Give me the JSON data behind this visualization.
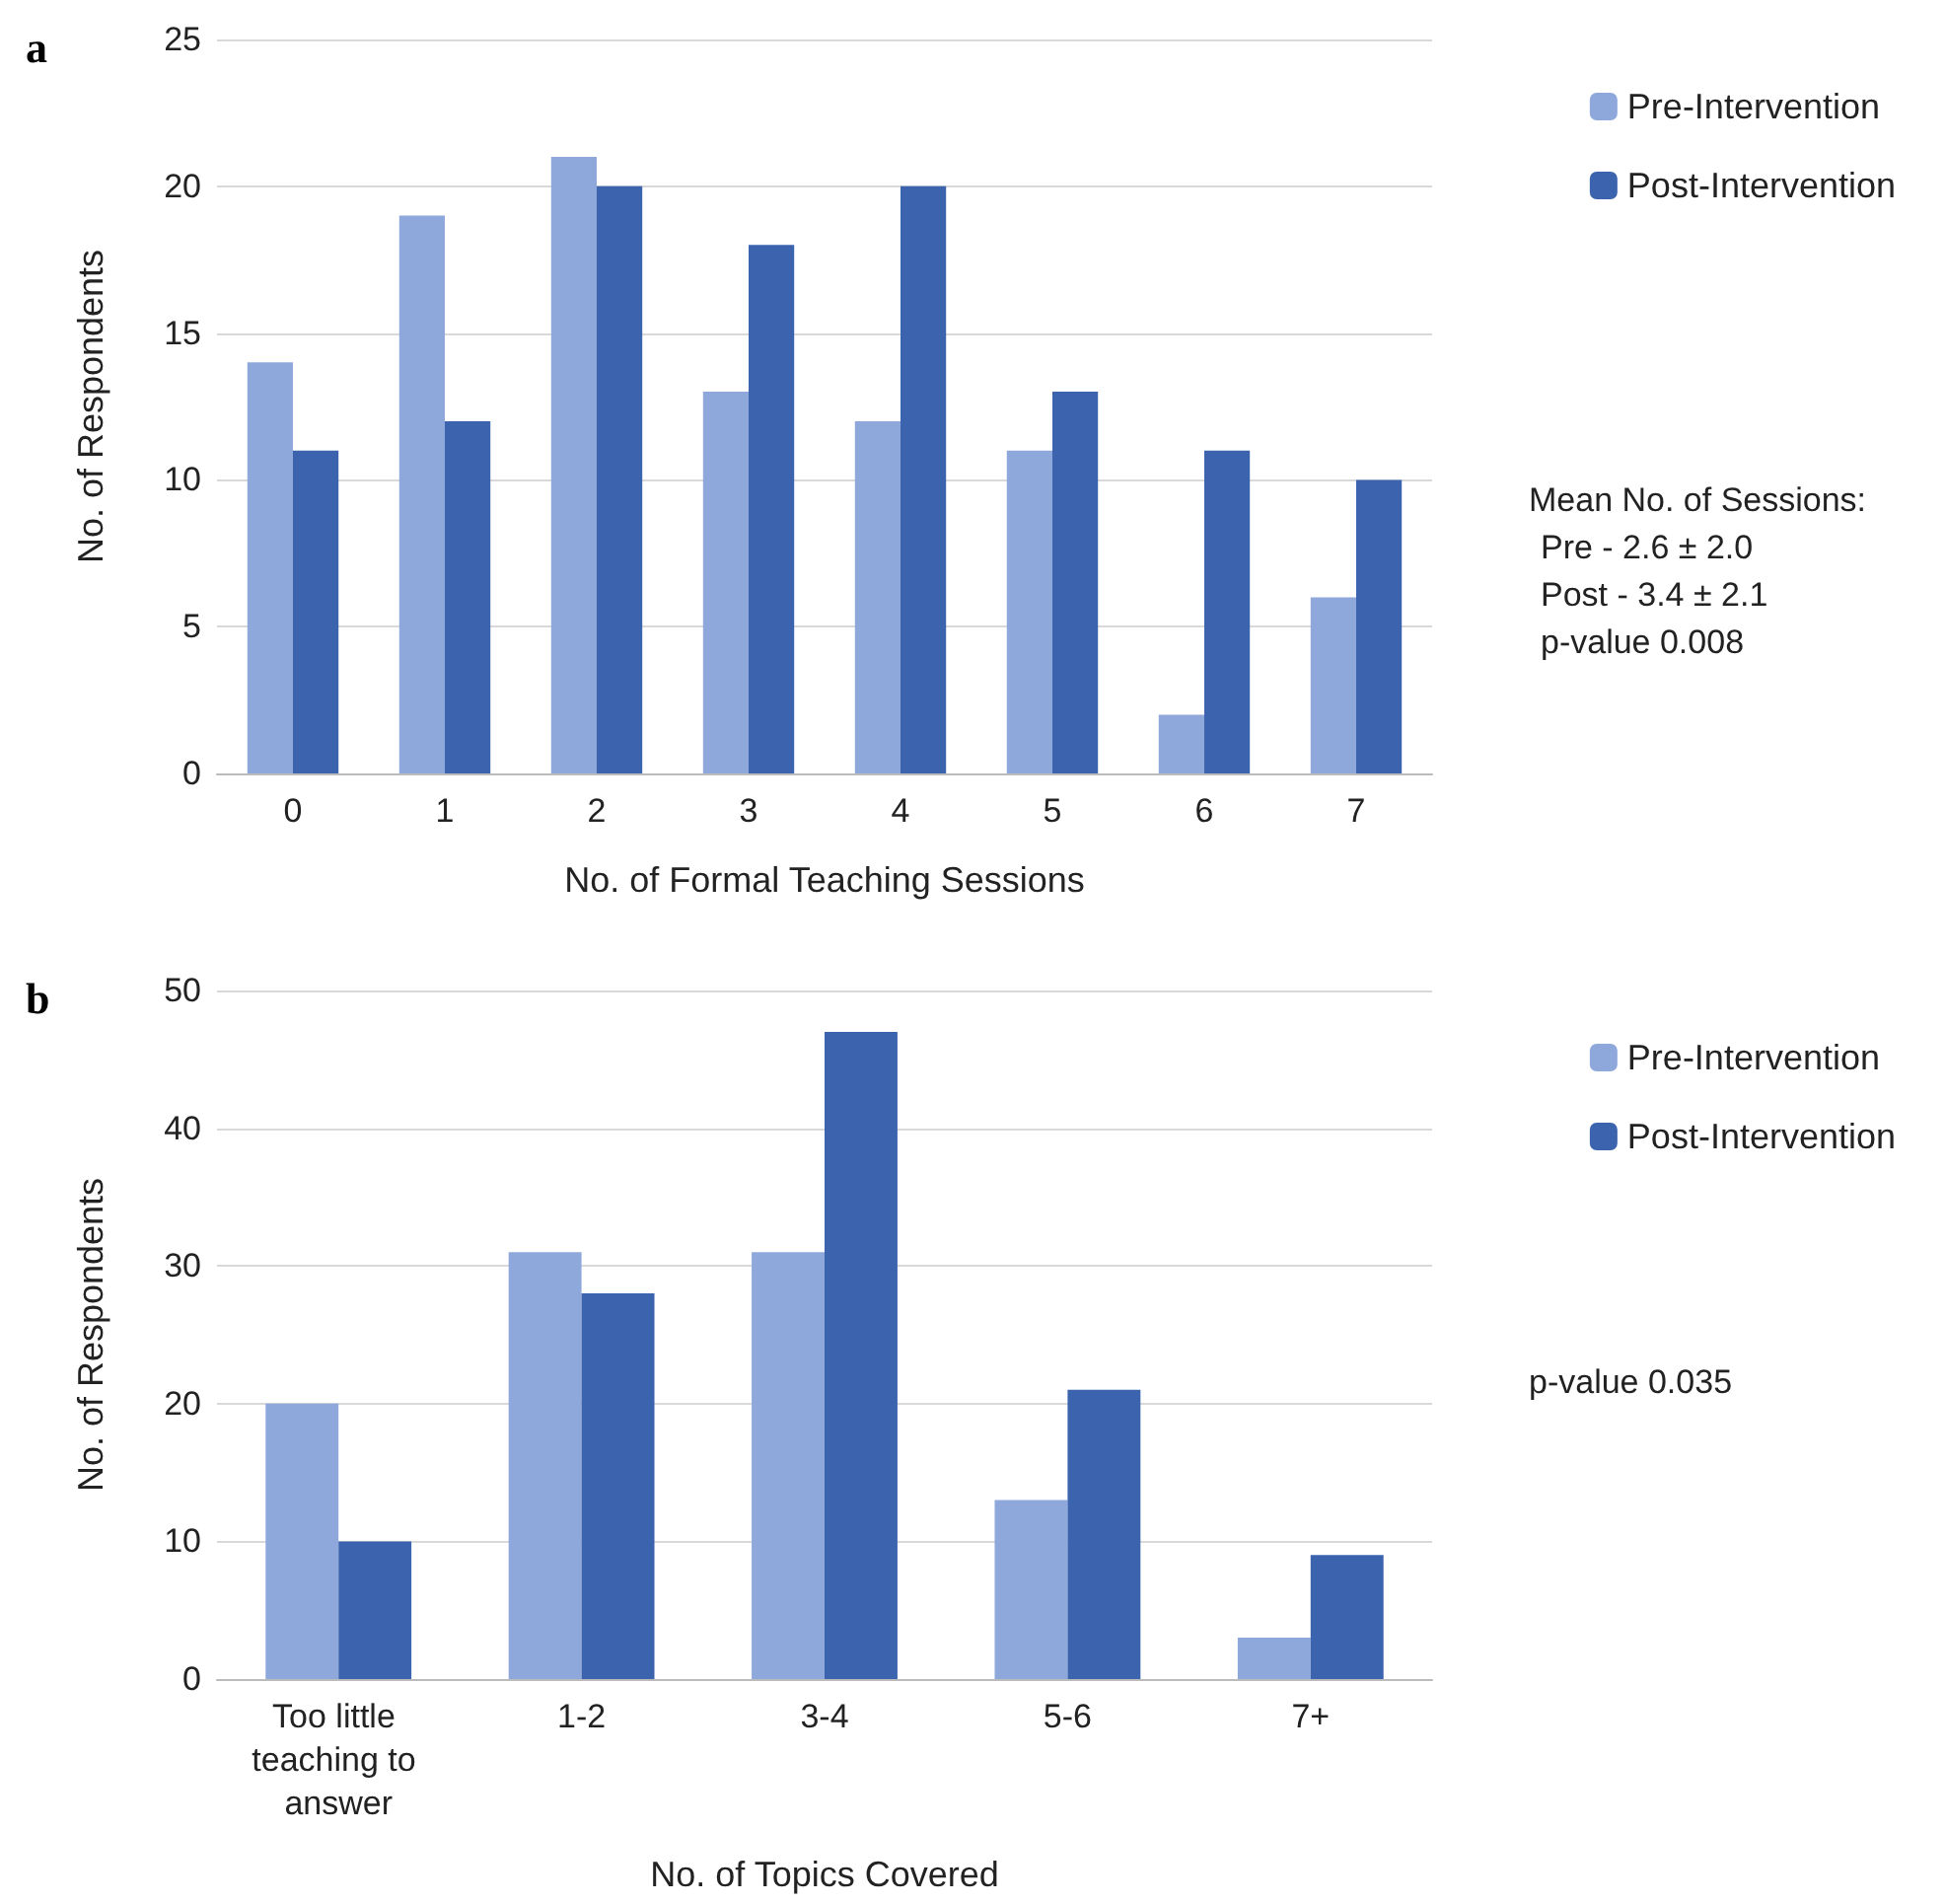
{
  "chart_data": [
    {
      "type": "bar",
      "title": "a",
      "xlabel": "No. of Formal Teaching Sessions",
      "ylabel": "No. of Respondents",
      "categories": [
        "0",
        "1",
        "2",
        "3",
        "4",
        "5",
        "6",
        "7"
      ],
      "series": [
        {
          "name": "Pre-Intervention",
          "color": "#8fa8dc",
          "values": [
            14,
            19,
            21,
            13,
            12,
            11,
            2,
            6
          ]
        },
        {
          "name": "Post-Intervention",
          "color": "#3c64ae",
          "values": [
            11,
            12,
            20,
            18,
            20,
            13,
            11,
            10
          ]
        }
      ],
      "ylim": [
        0,
        25
      ],
      "yticks": [
        0,
        5,
        10,
        15,
        20,
        25
      ],
      "grid": "y",
      "legend": "right",
      "annotations": [
        "Mean No. of Sessions:",
        "Pre - 2.6 ± 2.0",
        "Post - 3.4 ± 2.1",
        "p-value 0.008"
      ]
    },
    {
      "type": "bar",
      "title": "b",
      "xlabel": "No. of Topics Covered",
      "ylabel": "No. of Respondents",
      "categories": [
        "Too little teaching to answer",
        "1-2",
        "3-4",
        "5-6",
        "7+"
      ],
      "series": [
        {
          "name": "Pre-Intervention",
          "color": "#8fa8dc",
          "values": [
            20,
            31,
            31,
            13,
            3
          ]
        },
        {
          "name": "Post-Intervention",
          "color": "#3c64ae",
          "values": [
            10,
            28,
            47,
            21,
            9
          ]
        }
      ],
      "ylim": [
        0,
        50
      ],
      "yticks": [
        0,
        10,
        20,
        30,
        40,
        50
      ],
      "grid": "y",
      "legend": "right",
      "annotations": [
        "p-value 0.035"
      ]
    }
  ]
}
